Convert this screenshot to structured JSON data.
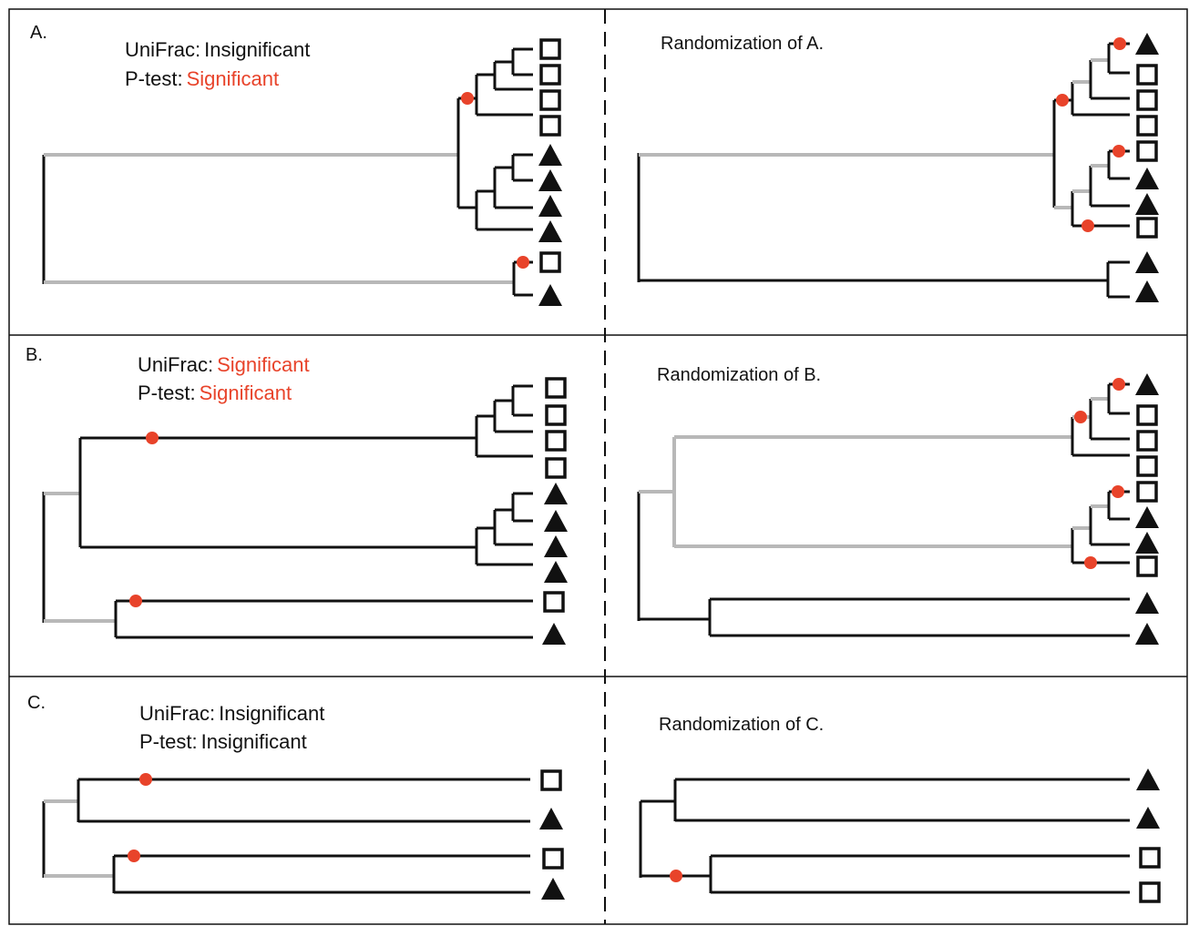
{
  "legend": {
    "square": "open-square-symbol",
    "triangle": "filled-triangle-symbol",
    "marker_color": "#e8432a",
    "gray_branch_color": "#b8b8b8",
    "text_significant_color": "#e8432a"
  },
  "panels": {
    "A": {
      "label": "A.",
      "unifrac_prefix": "UniFrac:",
      "unifrac_value": "Insignificant",
      "ptest_prefix": "P-test:",
      "ptest_value": "Significant",
      "randomization": "Randomization of A.",
      "tips_left": [
        "square",
        "square",
        "square",
        "square",
        "triangle",
        "triangle",
        "triangle",
        "triangle",
        "square",
        "triangle"
      ],
      "tips_right": [
        "triangle",
        "square",
        "square",
        "square",
        "square",
        "triangle",
        "triangle",
        "square",
        "triangle",
        "triangle"
      ]
    },
    "B": {
      "label": "B.",
      "unifrac_prefix": "UniFrac:",
      "unifrac_value": "Significant",
      "ptest_prefix": "P-test:",
      "ptest_value": "Significant",
      "randomization": "Randomization of B.",
      "tips_left": [
        "square",
        "square",
        "square",
        "square",
        "triangle",
        "triangle",
        "triangle",
        "triangle",
        "square",
        "triangle"
      ],
      "tips_right": [
        "triangle",
        "square",
        "square",
        "square",
        "square",
        "triangle",
        "triangle",
        "square",
        "triangle",
        "triangle"
      ]
    },
    "C": {
      "label": "C.",
      "unifrac_prefix": "UniFrac:",
      "unifrac_value": "Insignificant",
      "ptest_prefix": "P-test:",
      "ptest_value": "Insignificant",
      "randomization": "Randomization of C.",
      "tips_left": [
        "square",
        "triangle",
        "square",
        "triangle"
      ],
      "tips_right": [
        "triangle",
        "triangle",
        "square",
        "square"
      ]
    }
  }
}
